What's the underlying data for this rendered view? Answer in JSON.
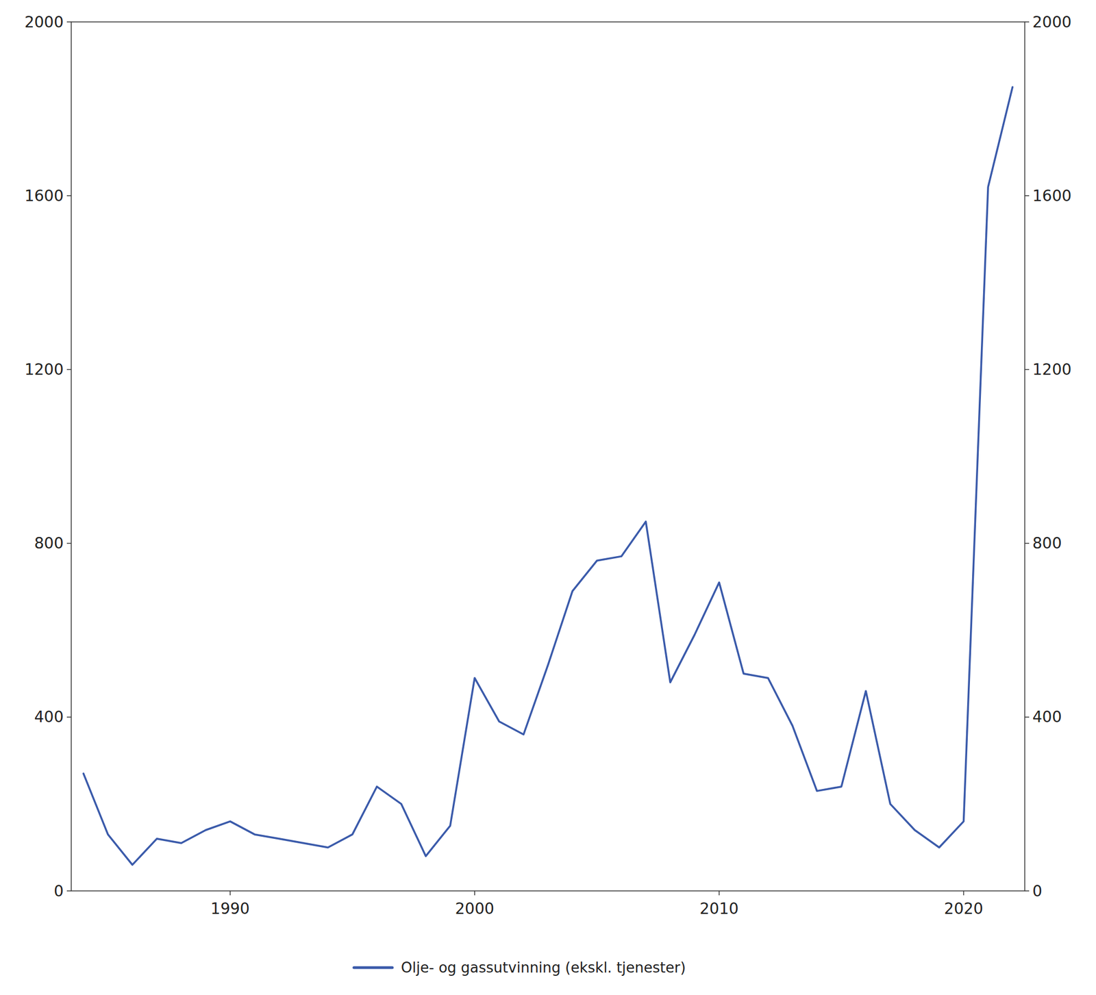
{
  "chart_data": {
    "type": "line",
    "x": [
      1984,
      1985,
      1986,
      1987,
      1988,
      1989,
      1990,
      1991,
      1992,
      1993,
      1994,
      1995,
      1996,
      1997,
      1998,
      1999,
      2000,
      2001,
      2002,
      2003,
      2004,
      2005,
      2006,
      2007,
      2008,
      2009,
      2010,
      2011,
      2012,
      2013,
      2014,
      2015,
      2016,
      2017,
      2018,
      2019,
      2020,
      2021,
      2022
    ],
    "series": [
      {
        "name": "Olje- og gassutvinning (ekskl. tjenester)",
        "color": "#3a5aaa",
        "values": [
          270,
          130,
          60,
          120,
          110,
          140,
          160,
          130,
          120,
          110,
          100,
          130,
          240,
          200,
          80,
          150,
          490,
          390,
          360,
          520,
          690,
          760,
          770,
          850,
          480,
          590,
          710,
          500,
          490,
          380,
          230,
          240,
          460,
          200,
          140,
          100,
          160,
          1620,
          1850
        ]
      }
    ],
    "xlim": [
      1983.5,
      2022.5
    ],
    "xticks": [
      1990,
      2000,
      2010,
      2020
    ],
    "ylim": [
      0,
      2000
    ],
    "yticks": [
      0,
      400,
      800,
      1200,
      1600,
      2000
    ],
    "y2lim": [
      0,
      2000
    ],
    "y2ticks": [
      0,
      400,
      800,
      1200,
      1600,
      2000
    ],
    "grid": false,
    "legend": "bottom"
  }
}
